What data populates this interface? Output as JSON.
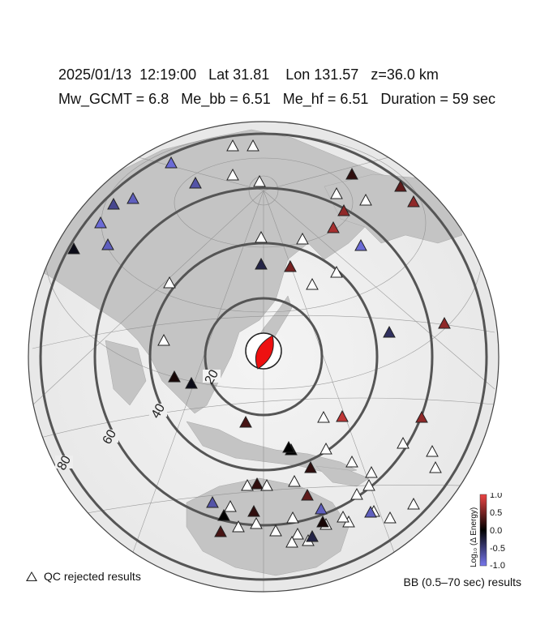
{
  "header": {
    "line1": "2025/01/13  12:19:00   Lat 31.81    Lon 131.57   z=36.0 km",
    "line2": "Mw_GCMT = 6.8   Me_bb = 6.51   Me_hf = 6.51   Duration = 59 sec"
  },
  "map": {
    "distance_ring_labels": [
      "20",
      "40",
      "60",
      "80"
    ],
    "epicenter_icon": "focal-mechanism-beachball",
    "mechanism_color": "#ee1111"
  },
  "stations": {
    "qc_rejected_count": 38,
    "colored": [
      {
        "dlogE": -0.9
      },
      {
        "dlogE": -0.7
      },
      {
        "dlogE": -0.8
      },
      {
        "dlogE": -0.6
      },
      {
        "dlogE": -0.9
      },
      {
        "dlogE": -0.1
      },
      {
        "dlogE": -0.8
      },
      {
        "dlogE": 0.1
      },
      {
        "dlogE": -0.1
      },
      {
        "dlogE": 0.3
      },
      {
        "dlogE": -0.3
      },
      {
        "dlogE": 0.5
      },
      {
        "dlogE": 0.2
      },
      {
        "dlogE": 0.6
      },
      {
        "dlogE": 0.4
      },
      {
        "dlogE": 0.6
      },
      {
        "dlogE": 0.7
      },
      {
        "dlogE": -0.9
      },
      {
        "dlogE": -0.4
      },
      {
        "dlogE": 0.6
      },
      {
        "dlogE": 0.6
      },
      {
        "dlogE": 0.8
      },
      {
        "dlogE": 0.0
      },
      {
        "dlogE": 0.2
      },
      {
        "dlogE": 0.4
      },
      {
        "dlogE": -0.7
      },
      {
        "dlogE": 0.0
      },
      {
        "dlogE": 0.3
      },
      {
        "dlogE": 0.2
      },
      {
        "dlogE": -0.8
      },
      {
        "dlogE": -0.3
      },
      {
        "dlogE": 0.1
      },
      {
        "dlogE": -0.8
      },
      {
        "dlogE": 0.0
      },
      {
        "dlogE": 0.2
      }
    ]
  },
  "colorbar": {
    "label": "Log₁₀ (Δ Energy)",
    "ticks": [
      "1.0",
      "0.5",
      "0.0",
      "-0.5",
      "-1.0"
    ],
    "low_color": "#7777ee",
    "mid_color": "#000000",
    "high_color": "#ee4444"
  },
  "legend": {
    "qc_rejected": "QC rejected results",
    "bb_results": "BB (0.5–70 sec) results"
  }
}
